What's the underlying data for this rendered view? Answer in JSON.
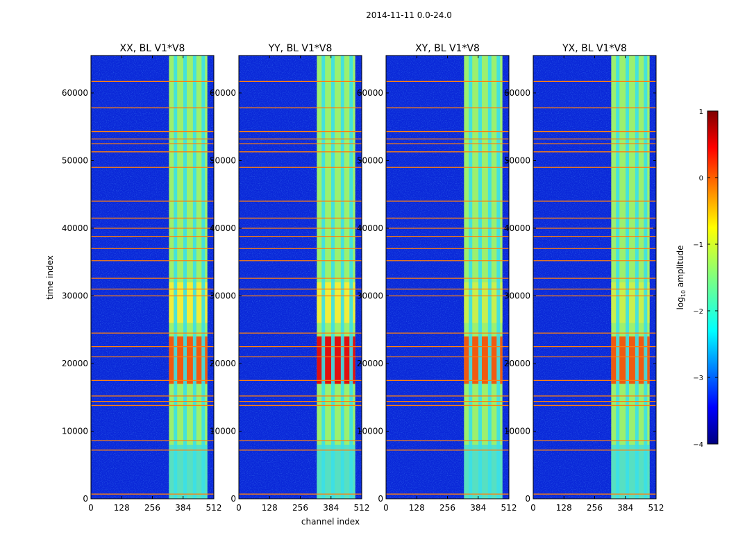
{
  "chart_data": {
    "type": "heatmap",
    "suptitle": "2014-11-11 0.0-24.0",
    "xlabel": "channel index",
    "ylabel": "time index",
    "xlim": [
      0,
      512
    ],
    "ylim": [
      0,
      65536
    ],
    "xticks": [
      0,
      128,
      256,
      384,
      512
    ],
    "yticks": [
      0,
      10000,
      20000,
      30000,
      40000,
      50000,
      60000
    ],
    "panels": [
      {
        "title": "XX, BL V1*V8",
        "pol": "XX"
      },
      {
        "title": "YY, BL V1*V8",
        "pol": "YY"
      },
      {
        "title": "XY, BL V1*V8",
        "pol": "XY"
      },
      {
        "title": "YX, BL V1*V8",
        "pol": "YX"
      }
    ],
    "colorbar": {
      "label": "log10 amplitude",
      "label_prefix": "log",
      "label_sub": "10",
      "label_suffix": " amplitude",
      "range": [
        -4,
        1
      ],
      "ticks": [
        1,
        0,
        -1,
        -2,
        -3,
        -4
      ],
      "tick_labels": [
        "1",
        "0",
        "−1",
        "−2",
        "−3",
        "−4"
      ],
      "colormap": "jet"
    },
    "band_channels": [
      325,
      485
    ],
    "band_gap_channels": [
      352,
      392,
      432,
      468
    ],
    "flagged_time_rows": [
      700,
      7200,
      8600,
      13800,
      14400,
      15200,
      17500,
      21000,
      22500,
      24500,
      30000,
      31000,
      32600,
      35200,
      37000,
      38800,
      40000,
      41500,
      44000,
      49000,
      51300,
      52500,
      53200,
      54300,
      57800,
      61700
    ],
    "bright_interval": [
      17000,
      24000
    ]
  },
  "colors": {
    "flag_line": "#ff7f0e",
    "background_low": "#0a28d8"
  }
}
